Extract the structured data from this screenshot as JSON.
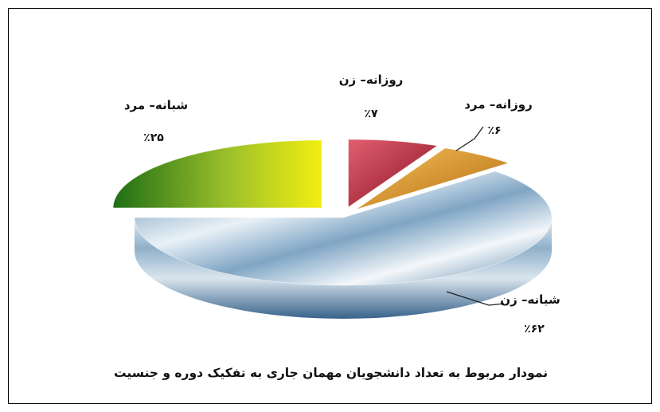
{
  "chart_data": {
    "type": "pie",
    "title": "نمودار مربوط به تعداد دانشجویان مهمان جاری به تفکیک دوره و جنسیت",
    "slices": [
      {
        "label": "روزانه– زن",
        "value_label": "٪۷",
        "value": 7,
        "color": "#a8182a"
      },
      {
        "label": "روزانه– مرد",
        "value_label": "٪۶",
        "value": 6,
        "color": "#d98a1c"
      },
      {
        "label": "شبانه– زن",
        "value_label": "٪۶۲",
        "value": 62,
        "color": "#5f86a8"
      },
      {
        "label": "شبانه– مرد",
        "value_label": "٪۲۵",
        "value": 25,
        "color": "#7aa820"
      }
    ]
  }
}
